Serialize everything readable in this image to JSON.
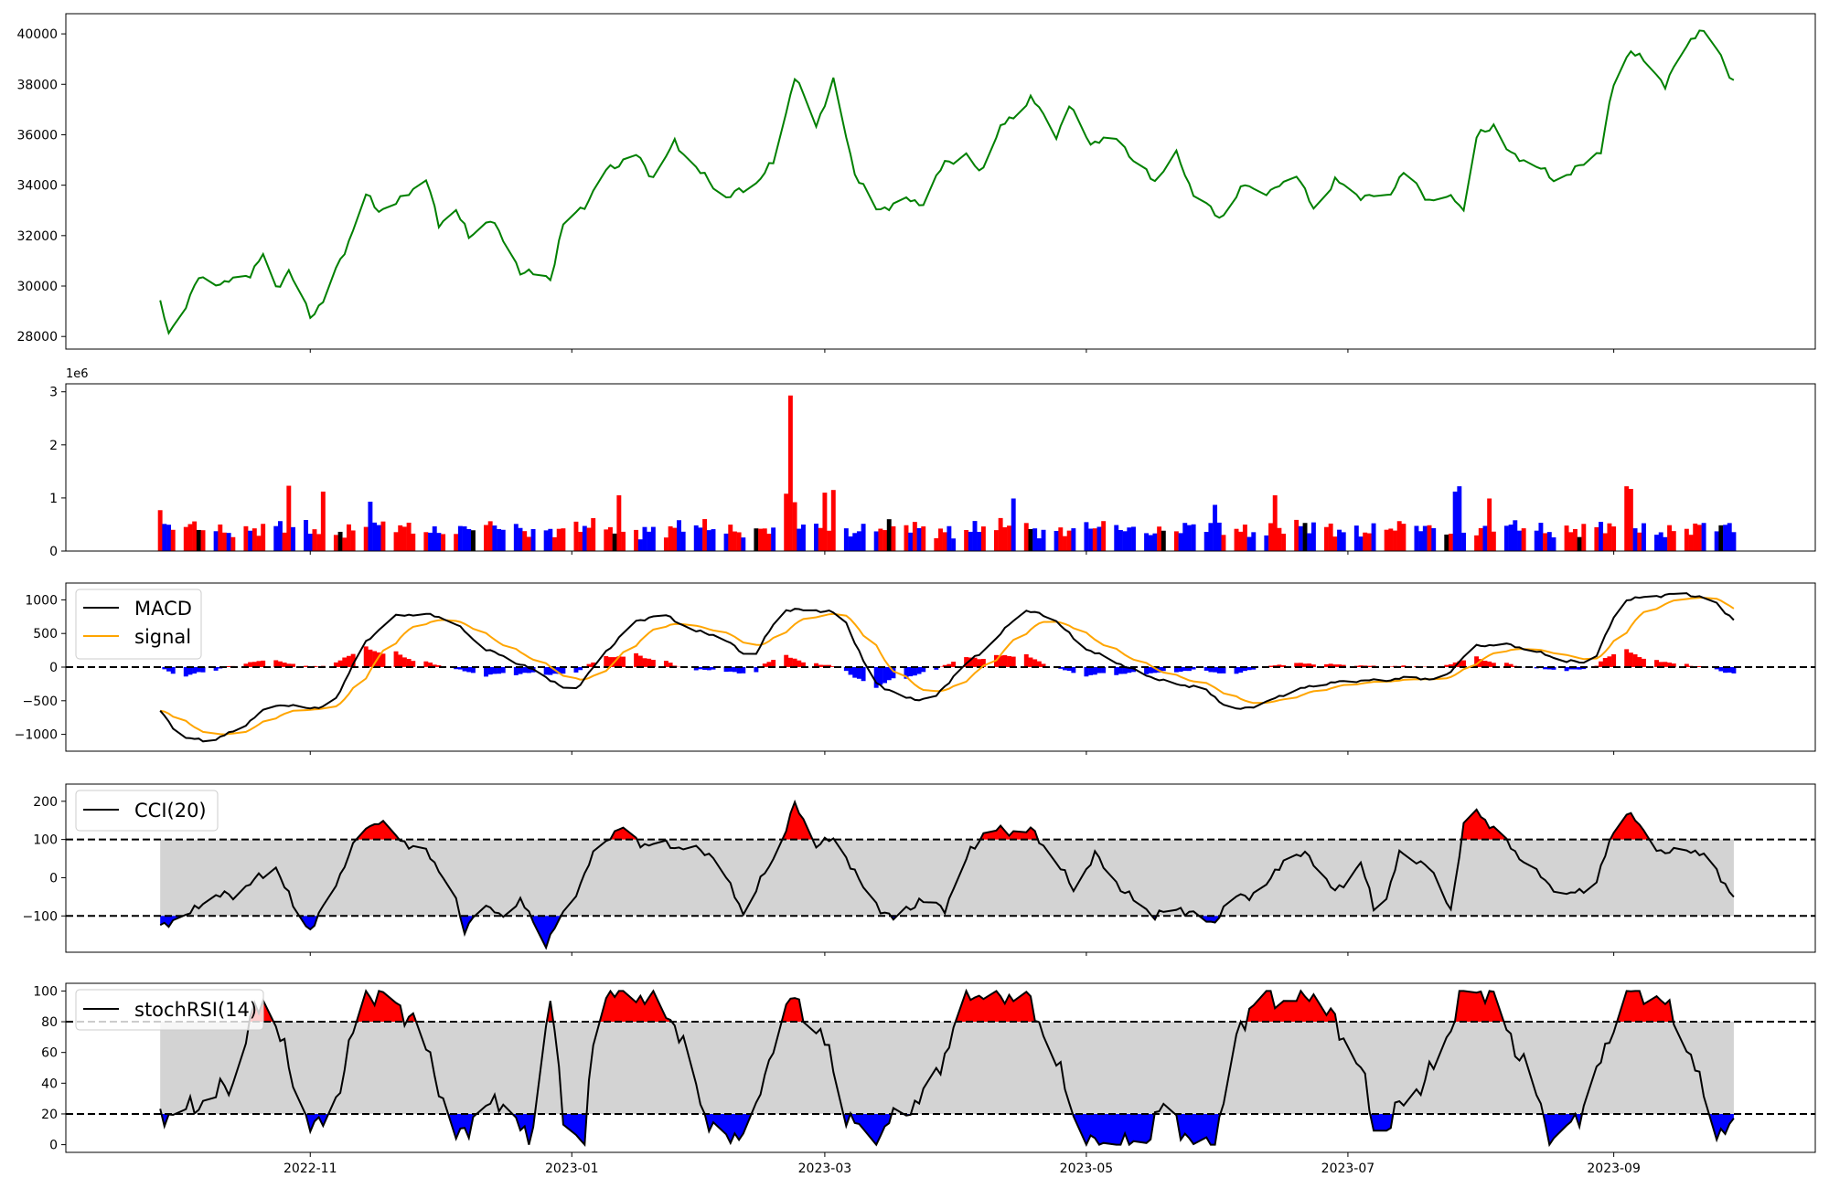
{
  "chart_data": [
    {
      "type": "line",
      "title": "",
      "series": [
        {
          "color": "#008000"
        }
      ],
      "ylim": [
        27500,
        40800
      ],
      "yticks": [
        "28000",
        "30000",
        "32000",
        "34000",
        "36000",
        "38000",
        "40000"
      ],
      "anchors": [
        [
          "2022-09-27",
          29300
        ],
        [
          "2022-09-29",
          28100
        ],
        [
          "2022-10-04",
          29600
        ],
        [
          "2022-10-06",
          30300
        ],
        [
          "2022-10-12",
          30100
        ],
        [
          "2022-10-18",
          30500
        ],
        [
          "2022-10-21",
          31200
        ],
        [
          "2022-10-24",
          29900
        ],
        [
          "2022-10-27",
          30600
        ],
        [
          "2022-11-01",
          28800
        ],
        [
          "2022-11-04",
          29400
        ],
        [
          "2022-11-10",
          31800
        ],
        [
          "2022-11-14",
          33600
        ],
        [
          "2022-11-17",
          33000
        ],
        [
          "2022-11-22",
          33400
        ],
        [
          "2022-11-28",
          34300
        ],
        [
          "2022-12-01",
          32400
        ],
        [
          "2022-12-05",
          33100
        ],
        [
          "2022-12-08",
          31900
        ],
        [
          "2022-12-13",
          32700
        ],
        [
          "2022-12-20",
          30600
        ],
        [
          "2022-12-27",
          30300
        ],
        [
          "2022-12-30",
          32400
        ],
        [
          "2023-01-05",
          33400
        ],
        [
          "2023-01-09",
          34600
        ],
        [
          "2023-01-16",
          35200
        ],
        [
          "2023-01-20",
          34300
        ],
        [
          "2023-01-25",
          35700
        ],
        [
          "2023-01-31",
          34500
        ],
        [
          "2023-02-06",
          33500
        ],
        [
          "2023-02-13",
          34100
        ],
        [
          "2023-02-17",
          34900
        ],
        [
          "2023-02-22",
          38300
        ],
        [
          "2023-02-27",
          36400
        ],
        [
          "2023-03-03",
          38100
        ],
        [
          "2023-03-08",
          34500
        ],
        [
          "2023-03-13",
          33000
        ],
        [
          "2023-03-20",
          33400
        ],
        [
          "2023-03-24",
          33300
        ],
        [
          "2023-03-29",
          34900
        ],
        [
          "2023-04-03",
          35200
        ],
        [
          "2023-04-06",
          34500
        ],
        [
          "2023-04-11",
          36300
        ],
        [
          "2023-04-14",
          36700
        ],
        [
          "2023-04-18",
          37500
        ],
        [
          "2023-04-24",
          36000
        ],
        [
          "2023-04-27",
          37100
        ],
        [
          "2023-05-02",
          35700
        ],
        [
          "2023-05-09",
          35800
        ],
        [
          "2023-05-12",
          34900
        ],
        [
          "2023-05-17",
          34200
        ],
        [
          "2023-05-22",
          35200
        ],
        [
          "2023-05-26",
          33700
        ],
        [
          "2023-06-01",
          32700
        ],
        [
          "2023-06-07",
          34000
        ],
        [
          "2023-06-13",
          33700
        ],
        [
          "2023-06-19",
          34500
        ],
        [
          "2023-06-23",
          33000
        ],
        [
          "2023-06-28",
          34200
        ],
        [
          "2023-07-03",
          33600
        ],
        [
          "2023-07-10",
          33500
        ],
        [
          "2023-07-14",
          34500
        ],
        [
          "2023-07-20",
          33400
        ],
        [
          "2023-07-26",
          33500
        ],
        [
          "2023-07-28",
          33000
        ],
        [
          "2023-07-31",
          35900
        ],
        [
          "2023-08-04",
          36400
        ],
        [
          "2023-08-08",
          35200
        ],
        [
          "2023-08-14",
          34800
        ],
        [
          "2023-08-18",
          34200
        ],
        [
          "2023-08-23",
          34600
        ],
        [
          "2023-08-29",
          35400
        ],
        [
          "2023-09-01",
          38000
        ],
        [
          "2023-09-05",
          39400
        ],
        [
          "2023-09-08",
          38900
        ],
        [
          "2023-09-13",
          38000
        ],
        [
          "2023-09-18",
          39500
        ],
        [
          "2023-09-21",
          40200
        ],
        [
          "2023-09-25",
          39400
        ],
        [
          "2023-09-29",
          38100
        ]
      ]
    },
    {
      "type": "bar",
      "title": "",
      "offset_label": "1e6",
      "ylim": [
        0,
        3.15
      ],
      "yticks": [
        "0",
        "1",
        "2",
        "3"
      ],
      "colors": {
        "up": "#ff0000",
        "down": "#0000ff",
        "flat": "#000000"
      },
      "typical_volume_millions": 0.42,
      "notable": [
        [
          "2022-09-27",
          0.77
        ],
        [
          "2022-10-27",
          1.23
        ],
        [
          "2022-11-04",
          1.12
        ],
        [
          "2022-11-15",
          0.93
        ],
        [
          "2023-01-12",
          1.05
        ],
        [
          "2023-02-20",
          1.08
        ],
        [
          "2023-02-21",
          2.93
        ],
        [
          "2023-02-22",
          0.92
        ],
        [
          "2023-03-01",
          1.1
        ],
        [
          "2023-03-03",
          1.15
        ],
        [
          "2023-04-14",
          0.99
        ],
        [
          "2023-05-31",
          0.87
        ],
        [
          "2023-06-14",
          1.05
        ],
        [
          "2023-07-26",
          1.12
        ],
        [
          "2023-07-27",
          1.22
        ],
        [
          "2023-08-03",
          0.99
        ],
        [
          "2023-09-04",
          1.22
        ],
        [
          "2023-09-05",
          1.17
        ]
      ]
    },
    {
      "type": "line",
      "title": "",
      "ylim": [
        -1250,
        1250
      ],
      "yticks": [
        "−1000",
        "−500",
        "0",
        "500",
        "1000"
      ],
      "series": [
        {
          "name": "MACD",
          "color": "#000000"
        },
        {
          "name": "signal",
          "color": "#ffa500"
        }
      ],
      "histogram_colors": {
        "positive": "#ff0000",
        "negative": "#0000ff"
      },
      "reference_line": 0,
      "macd_anchors": [
        [
          "2022-09-27",
          -650
        ],
        [
          "2022-10-02",
          -1050
        ],
        [
          "2022-10-09",
          -1100
        ],
        [
          "2022-10-16",
          -900
        ],
        [
          "2022-10-23",
          -550
        ],
        [
          "2022-10-30",
          -600
        ],
        [
          "2022-11-06",
          -600
        ],
        [
          "2022-11-13",
          300
        ],
        [
          "2022-11-20",
          750
        ],
        [
          "2022-11-27",
          800
        ],
        [
          "2022-12-04",
          700
        ],
        [
          "2022-12-11",
          300
        ],
        [
          "2022-12-18",
          100
        ],
        [
          "2022-12-25",
          -100
        ],
        [
          "2023-01-01",
          -400
        ],
        [
          "2023-01-08",
          150
        ],
        [
          "2023-01-15",
          650
        ],
        [
          "2023-01-22",
          800
        ],
        [
          "2023-01-29",
          550
        ],
        [
          "2023-02-05",
          450
        ],
        [
          "2023-02-12",
          100
        ],
        [
          "2023-02-19",
          850
        ],
        [
          "2023-02-26",
          850
        ],
        [
          "2023-03-05",
          800
        ],
        [
          "2023-03-12",
          -200
        ],
        [
          "2023-03-19",
          -450
        ],
        [
          "2023-03-26",
          -500
        ],
        [
          "2023-04-02",
          0
        ],
        [
          "2023-04-09",
          350
        ],
        [
          "2023-04-16",
          850
        ],
        [
          "2023-04-23",
          750
        ],
        [
          "2023-04-30",
          300
        ],
        [
          "2023-05-07",
          100
        ],
        [
          "2023-05-14",
          -100
        ],
        [
          "2023-05-21",
          -250
        ],
        [
          "2023-05-28",
          -300
        ],
        [
          "2023-06-04",
          -650
        ],
        [
          "2023-06-11",
          -550
        ],
        [
          "2023-06-18",
          -350
        ],
        [
          "2023-06-25",
          -250
        ],
        [
          "2023-07-02",
          -200
        ],
        [
          "2023-07-09",
          -200
        ],
        [
          "2023-07-16",
          -150
        ],
        [
          "2023-07-23",
          -200
        ],
        [
          "2023-07-30",
          300
        ],
        [
          "2023-08-06",
          350
        ],
        [
          "2023-08-13",
          250
        ],
        [
          "2023-08-20",
          100
        ],
        [
          "2023-08-27",
          50
        ],
        [
          "2023-09-03",
          1000
        ],
        [
          "2023-09-10",
          1050
        ],
        [
          "2023-09-17",
          1100
        ],
        [
          "2023-09-24",
          1000
        ],
        [
          "2023-09-29",
          700
        ]
      ]
    },
    {
      "type": "line",
      "title": "",
      "ylim": [
        -195,
        245
      ],
      "yticks": [
        "−100",
        "0",
        "100",
        "200"
      ],
      "series": [
        {
          "name": "CCI(20)",
          "color": "#000000"
        }
      ],
      "band": [
        -100,
        100
      ],
      "fill_colors": {
        "band": "#d3d3d3",
        "above": "#ff0000",
        "below": "#0000ff"
      },
      "anchors": [
        [
          "2022-09-27",
          -130
        ],
        [
          "2022-09-29",
          -115
        ],
        [
          "2022-10-04",
          -95
        ],
        [
          "2022-10-08",
          -50
        ],
        [
          "2022-10-14",
          -45
        ],
        [
          "2022-10-20",
          0
        ],
        [
          "2022-10-24",
          30
        ],
        [
          "2022-10-28",
          -75
        ],
        [
          "2022-11-01",
          -135
        ],
        [
          "2022-11-05",
          -65
        ],
        [
          "2022-11-10",
          60
        ],
        [
          "2022-11-14",
          130
        ],
        [
          "2022-11-17",
          150
        ],
        [
          "2022-11-21",
          105
        ],
        [
          "2022-11-28",
          65
        ],
        [
          "2022-12-04",
          -20
        ],
        [
          "2022-12-07",
          -150
        ],
        [
          "2022-12-10",
          -60
        ],
        [
          "2022-12-15",
          -100
        ],
        [
          "2022-12-20",
          -60
        ],
        [
          "2022-12-26",
          -170
        ],
        [
          "2023-01-01",
          -60
        ],
        [
          "2023-01-07",
          80
        ],
        [
          "2023-01-12",
          130
        ],
        [
          "2023-01-17",
          90
        ],
        [
          "2023-01-22",
          85
        ],
        [
          "2023-01-27",
          80
        ],
        [
          "2023-02-03",
          60
        ],
        [
          "2023-02-10",
          -90
        ],
        [
          "2023-02-17",
          50
        ],
        [
          "2023-02-22",
          190
        ],
        [
          "2023-02-27",
          90
        ],
        [
          "2023-03-04",
          100
        ],
        [
          "2023-03-11",
          -50
        ],
        [
          "2023-03-17",
          -110
        ],
        [
          "2023-03-23",
          -60
        ],
        [
          "2023-03-29",
          -80
        ],
        [
          "2023-04-04",
          70
        ],
        [
          "2023-04-08",
          130
        ],
        [
          "2023-04-13",
          120
        ],
        [
          "2023-04-18",
          125
        ],
        [
          "2023-04-23",
          60
        ],
        [
          "2023-04-28",
          -30
        ],
        [
          "2023-05-03",
          60
        ],
        [
          "2023-05-10",
          -40
        ],
        [
          "2023-05-17",
          -100
        ],
        [
          "2023-05-23",
          -80
        ],
        [
          "2023-05-30",
          -120
        ],
        [
          "2023-06-05",
          -50
        ],
        [
          "2023-06-11",
          -40
        ],
        [
          "2023-06-16",
          50
        ],
        [
          "2023-06-22",
          60
        ],
        [
          "2023-06-28",
          -40
        ],
        [
          "2023-07-04",
          40
        ],
        [
          "2023-07-08",
          -120
        ],
        [
          "2023-07-13",
          60
        ],
        [
          "2023-07-19",
          40
        ],
        [
          "2023-07-25",
          -80
        ],
        [
          "2023-07-29",
          200
        ],
        [
          "2023-08-03",
          140
        ],
        [
          "2023-08-08",
          80
        ],
        [
          "2023-08-14",
          10
        ],
        [
          "2023-08-21",
          -50
        ],
        [
          "2023-08-28",
          -10
        ],
        [
          "2023-09-03",
          190
        ],
        [
          "2023-09-08",
          120
        ],
        [
          "2023-09-13",
          60
        ],
        [
          "2023-09-18",
          80
        ],
        [
          "2023-09-24",
          40
        ],
        [
          "2023-09-29",
          -55
        ]
      ]
    },
    {
      "type": "line",
      "title": "",
      "xlabel": "",
      "ylim": [
        -5,
        105
      ],
      "yticks": [
        "0",
        "20",
        "40",
        "60",
        "80",
        "100"
      ],
      "xticks": [
        "2022-11",
        "2023-01",
        "2023-03",
        "2023-05",
        "2023-07",
        "2023-09"
      ],
      "series": [
        {
          "name": "stochRSI(14)",
          "color": "#000000"
        }
      ],
      "band": [
        20,
        80
      ],
      "fill_colors": {
        "band": "#d3d3d3",
        "above": "#ff0000",
        "below": "#0000ff"
      },
      "anchors": [
        [
          "2022-09-27",
          20
        ],
        [
          "2022-10-02",
          20
        ],
        [
          "2022-10-08",
          30
        ],
        [
          "2022-10-14",
          40
        ],
        [
          "2022-10-18",
          80
        ],
        [
          "2022-10-22",
          100
        ],
        [
          "2022-10-26",
          60
        ],
        [
          "2022-10-29",
          30
        ],
        [
          "2022-11-02",
          10
        ],
        [
          "2022-11-06",
          20
        ],
        [
          "2022-11-10",
          60
        ],
        [
          "2022-11-13",
          100
        ],
        [
          "2022-11-20",
          95
        ],
        [
          "2022-11-25",
          80
        ],
        [
          "2022-11-30",
          50
        ],
        [
          "2022-12-04",
          0
        ],
        [
          "2022-12-10",
          20
        ],
        [
          "2022-12-16",
          30
        ],
        [
          "2022-12-22",
          0
        ],
        [
          "2022-12-27",
          95
        ],
        [
          "2022-12-30",
          20
        ],
        [
          "2023-01-04",
          0
        ],
        [
          "2023-01-07",
          100
        ],
        [
          "2023-01-14",
          100
        ],
        [
          "2023-01-19",
          95
        ],
        [
          "2023-01-25",
          80
        ],
        [
          "2023-02-01",
          20
        ],
        [
          "2023-02-06",
          0
        ],
        [
          "2023-02-13",
          20
        ],
        [
          "2023-02-18",
          80
        ],
        [
          "2023-02-22",
          95
        ],
        [
          "2023-02-26",
          80
        ],
        [
          "2023-03-02",
          60
        ],
        [
          "2023-03-06",
          20
        ],
        [
          "2023-03-12",
          0
        ],
        [
          "2023-03-18",
          20
        ],
        [
          "2023-03-24",
          30
        ],
        [
          "2023-03-30",
          65
        ],
        [
          "2023-04-03",
          100
        ],
        [
          "2023-04-10",
          95
        ],
        [
          "2023-04-16",
          100
        ],
        [
          "2023-04-22",
          70
        ],
        [
          "2023-04-28",
          20
        ],
        [
          "2023-05-02",
          0
        ],
        [
          "2023-05-08",
          0
        ],
        [
          "2023-05-14",
          0
        ],
        [
          "2023-05-20",
          30
        ],
        [
          "2023-05-25",
          0
        ],
        [
          "2023-05-31",
          0
        ],
        [
          "2023-06-06",
          80
        ],
        [
          "2023-06-12",
          100
        ],
        [
          "2023-06-17",
          90
        ],
        [
          "2023-06-22",
          100
        ],
        [
          "2023-06-28",
          80
        ],
        [
          "2023-07-04",
          50
        ],
        [
          "2023-07-08",
          0
        ],
        [
          "2023-07-14",
          30
        ],
        [
          "2023-07-19",
          40
        ],
        [
          "2023-07-24",
          70
        ],
        [
          "2023-07-28",
          100
        ],
        [
          "2023-08-03",
          100
        ],
        [
          "2023-08-08",
          70
        ],
        [
          "2023-08-13",
          40
        ],
        [
          "2023-08-18",
          0
        ],
        [
          "2023-08-24",
          20
        ],
        [
          "2023-08-30",
          60
        ],
        [
          "2023-09-03",
          100
        ],
        [
          "2023-09-10",
          100
        ],
        [
          "2023-09-16",
          80
        ],
        [
          "2023-09-20",
          50
        ],
        [
          "2023-09-24",
          10
        ],
        [
          "2023-09-29",
          10
        ]
      ]
    }
  ]
}
